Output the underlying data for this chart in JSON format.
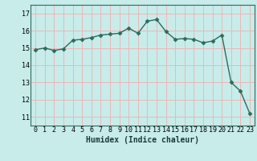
{
  "x": [
    0,
    1,
    2,
    3,
    4,
    5,
    6,
    7,
    8,
    9,
    10,
    11,
    12,
    13,
    14,
    15,
    16,
    17,
    18,
    19,
    20,
    21,
    22,
    23
  ],
  "y": [
    14.9,
    15.0,
    14.85,
    14.95,
    15.45,
    15.5,
    15.6,
    15.75,
    15.8,
    15.85,
    16.15,
    15.85,
    16.55,
    16.65,
    15.95,
    15.5,
    15.55,
    15.5,
    15.3,
    15.4,
    15.75,
    13.0,
    12.5,
    11.2
  ],
  "xlabel": "Humidex (Indice chaleur)",
  "xlim": [
    -0.5,
    23.5
  ],
  "ylim": [
    10.5,
    17.5
  ],
  "yticks": [
    11,
    12,
    13,
    14,
    15,
    16,
    17
  ],
  "xticks": [
    0,
    1,
    2,
    3,
    4,
    5,
    6,
    7,
    8,
    9,
    10,
    11,
    12,
    13,
    14,
    15,
    16,
    17,
    18,
    19,
    20,
    21,
    22,
    23
  ],
  "line_color": "#2d6b5e",
  "bg_color": "#c8ecea",
  "grid_color": "#e8b8b8",
  "marker_size": 2.5,
  "line_width": 1.0,
  "tick_fontsize": 6.0,
  "xlabel_fontsize": 7.0
}
